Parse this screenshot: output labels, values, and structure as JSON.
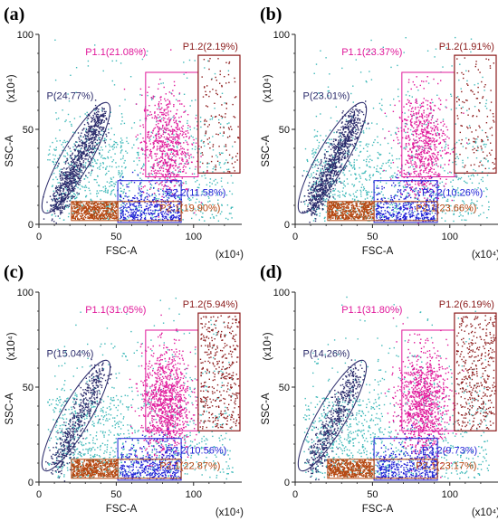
{
  "figure": {
    "panels": [
      {
        "label": "(a)",
        "xlabel": "FSC-A",
        "ylabel": "SSC-A",
        "x_unit": "(x10⁴)",
        "y_unit": "(x10⁴)",
        "xticks": [
          "0",
          "50",
          "100"
        ],
        "yticks": [
          "0",
          "50",
          "100"
        ],
        "gates": [
          {
            "name": "P(24.77%)",
            "color": "#2b2b6b"
          },
          {
            "name": "P1.1(21.08%)",
            "color": "#e0189a"
          },
          {
            "name": "P1.2(2.19%)",
            "color": "#8b1a1a"
          },
          {
            "name": "P2.2(11.58%)",
            "color": "#1f1fd6"
          },
          {
            "name": "P2.1(19.90%)",
            "color": "#b5460f"
          }
        ]
      },
      {
        "label": "(b)",
        "xlabel": "FSC-A",
        "ylabel": "SSC-A",
        "x_unit": "(x10⁴)",
        "y_unit": "(x10⁴)",
        "xticks": [
          "0",
          "50",
          "100"
        ],
        "yticks": [
          "0",
          "50",
          "100"
        ],
        "gates": [
          {
            "name": "P(23.01%)",
            "color": "#2b2b6b"
          },
          {
            "name": "P1.1(23.37%)",
            "color": "#e0189a"
          },
          {
            "name": "P1.2(1.91%)",
            "color": "#8b1a1a"
          },
          {
            "name": "P2.2(10.26%)",
            "color": "#1f1fd6"
          },
          {
            "name": "P2.1(23.66%)",
            "color": "#b5460f"
          }
        ]
      },
      {
        "label": "(c)",
        "xlabel": "FSC-A",
        "ylabel": "SSC-A",
        "x_unit": "(x10⁴)",
        "y_unit": "(x10⁴)",
        "xticks": [
          "0",
          "50",
          "100"
        ],
        "yticks": [
          "0",
          "50",
          "100"
        ],
        "gates": [
          {
            "name": "P(15.04%)",
            "color": "#2b2b6b"
          },
          {
            "name": "P1.1(31.05%)",
            "color": "#e0189a"
          },
          {
            "name": "P1.2(5.94%)",
            "color": "#8b1a1a"
          },
          {
            "name": "P2.2(10.56%)",
            "color": "#1f1fd6"
          },
          {
            "name": "P2.1(22.87%)",
            "color": "#b5460f"
          }
        ]
      },
      {
        "label": "(d)",
        "xlabel": "FSC-A",
        "ylabel": "SSC-A",
        "x_unit": "(x10⁴)",
        "y_unit": "(x10⁴)",
        "xticks": [
          "0",
          "50",
          "100"
        ],
        "yticks": [
          "0",
          "50",
          "100"
        ],
        "gates": [
          {
            "name": "P(14,26%)",
            "color": "#2b2b6b"
          },
          {
            "name": "P1.1(31.80%)",
            "color": "#e0189a"
          },
          {
            "name": "P1.2(6.19%)",
            "color": "#8b1a1a"
          },
          {
            "name": "P2.2(9.73%)",
            "color": "#1f1fd6"
          },
          {
            "name": "P2.1(23.17%)",
            "color": "#b5460f"
          }
        ]
      }
    ]
  },
  "colors": {
    "background_events": "#3fb9b9",
    "P": "#2b2b6b",
    "P1.1": "#e0189a",
    "P1.2": "#8b1a1a",
    "P2.2": "#1f1fd6",
    "P2.1": "#b5460f"
  },
  "chart_data": [
    {
      "type": "scatter",
      "title": "",
      "xlabel": "FSC-A",
      "ylabel": "SSC-A",
      "xlim": [
        0,
        130
      ],
      "ylim": [
        0,
        100
      ],
      "grid": false,
      "gates": [
        {
          "name": "P",
          "percent": 24.77
        },
        {
          "name": "P1.1",
          "percent": 21.08
        },
        {
          "name": "P1.2",
          "percent": 2.19
        },
        {
          "name": "P2.2",
          "percent": 11.58
        },
        {
          "name": "P2.1",
          "percent": 19.9
        }
      ]
    },
    {
      "type": "scatter",
      "title": "",
      "xlabel": "FSC-A",
      "ylabel": "SSC-A",
      "xlim": [
        0,
        130
      ],
      "ylim": [
        0,
        100
      ],
      "grid": false,
      "gates": [
        {
          "name": "P",
          "percent": 23.01
        },
        {
          "name": "P1.1",
          "percent": 23.37
        },
        {
          "name": "P1.2",
          "percent": 1.91
        },
        {
          "name": "P2.2",
          "percent": 10.26
        },
        {
          "name": "P2.1",
          "percent": 23.66
        }
      ]
    },
    {
      "type": "scatter",
      "title": "",
      "xlabel": "FSC-A",
      "ylabel": "SSC-A",
      "xlim": [
        0,
        130
      ],
      "ylim": [
        0,
        100
      ],
      "grid": false,
      "gates": [
        {
          "name": "P",
          "percent": 15.04
        },
        {
          "name": "P1.1",
          "percent": 31.05
        },
        {
          "name": "P1.2",
          "percent": 5.94
        },
        {
          "name": "P2.2",
          "percent": 10.56
        },
        {
          "name": "P2.1",
          "percent": 22.87
        }
      ]
    },
    {
      "type": "scatter",
      "title": "",
      "xlabel": "FSC-A",
      "ylabel": "SSC-A",
      "xlim": [
        0,
        130
      ],
      "ylim": [
        0,
        100
      ],
      "grid": false,
      "gates": [
        {
          "name": "P",
          "percent": 14.26
        },
        {
          "name": "P1.1",
          "percent": 31.8
        },
        {
          "name": "P1.2",
          "percent": 6.19
        },
        {
          "name": "P2.2",
          "percent": 9.73
        },
        {
          "name": "P2.1",
          "percent": 23.17
        }
      ]
    }
  ]
}
